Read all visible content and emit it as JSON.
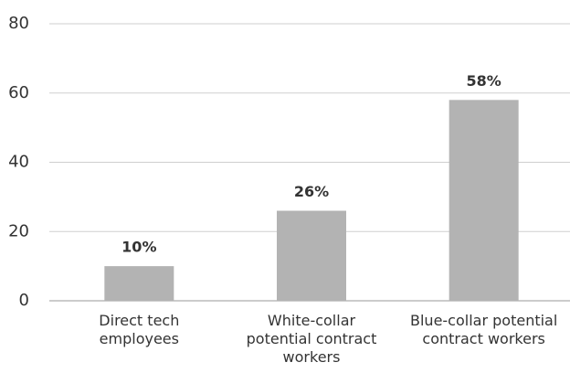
{
  "chart_data": {
    "type": "bar",
    "categories": [
      "Direct tech employees",
      "White-collar potential contract workers",
      "Blue-collar potential contract workers"
    ],
    "values": [
      10,
      26,
      58
    ],
    "value_labels": [
      "10%",
      "26%",
      "58%"
    ],
    "color": "#b3b3b3",
    "ylim": [
      0,
      80
    ],
    "yticks": [
      0,
      20,
      40,
      60,
      80
    ],
    "grid": true
  }
}
